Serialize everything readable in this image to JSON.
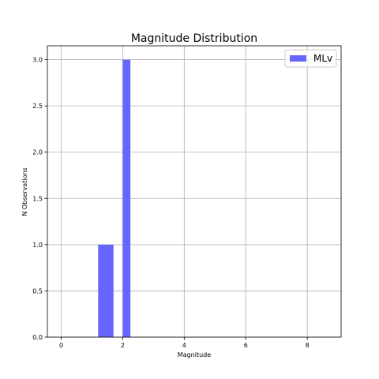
{
  "chart_data": {
    "type": "bar",
    "title": "Magnitude Distribution",
    "xlabel": "Magnitude",
    "ylabel": "N Observations",
    "xlim": [
      -0.45,
      9.1
    ],
    "ylim": [
      0,
      3.15
    ],
    "xticks": [
      0,
      2,
      4,
      6,
      8
    ],
    "xtick_labels": [
      "0",
      "2",
      "4",
      "6",
      "8"
    ],
    "yticks": [
      0.0,
      0.5,
      1.0,
      1.5,
      2.0,
      2.5,
      3.0
    ],
    "ytick_labels": [
      "0.0",
      "0.5",
      "1.0",
      "1.5",
      "2.0",
      "2.5",
      "3.0"
    ],
    "grid": true,
    "legend_position": "top-right",
    "series": [
      {
        "name": "MLv",
        "color": "#6666ff",
        "bars": [
          {
            "x0": 1.2,
            "x1": 1.7,
            "value": 1
          },
          {
            "x0": 2.0,
            "x1": 2.25,
            "value": 3
          }
        ]
      }
    ]
  }
}
